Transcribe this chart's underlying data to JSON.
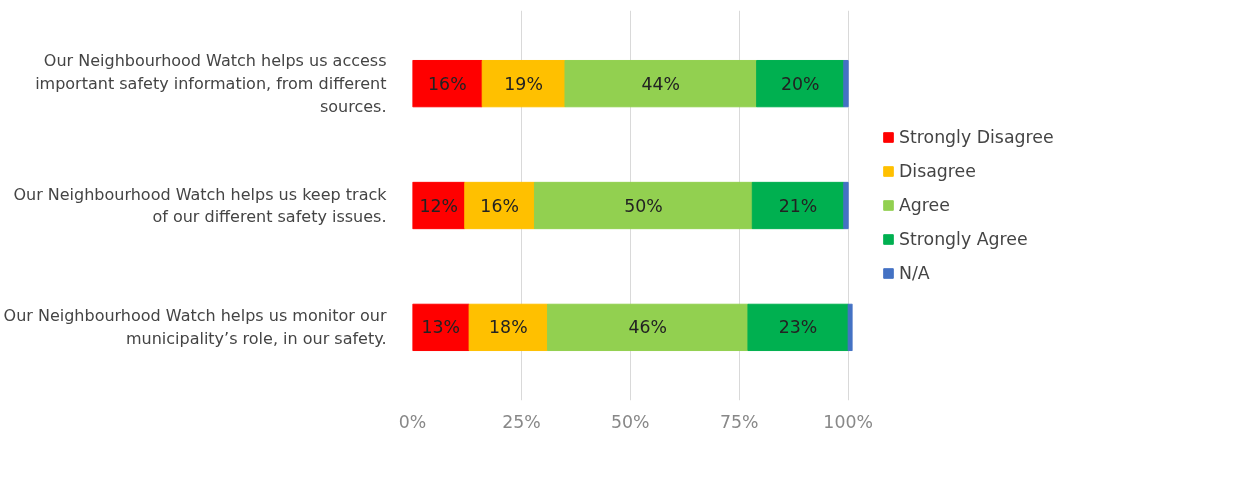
{
  "chart_data": {
    "type": "bar",
    "orientation": "horizontal",
    "stacked": true,
    "categories": [
      "Our Neighbourhood Watch helps us access important safety information, from different sources.",
      "Our Neighbourhood Watch helps us keep track of our different safety issues.",
      "Our Neighbourhood Watch helps us monitor our municipality’s role, in our safety."
    ],
    "series": [
      {
        "name": "Strongly Disagree",
        "color": "#ff0000",
        "values": [
          16,
          12,
          13
        ],
        "value_labels": [
          "16%",
          "12%",
          "13%"
        ]
      },
      {
        "name": "Disagree",
        "color": "#ffc000",
        "values": [
          19,
          16,
          18
        ],
        "value_labels": [
          "19%",
          "16%",
          "18%"
        ]
      },
      {
        "name": "Agree",
        "color": "#92d050",
        "values": [
          44,
          50,
          46
        ],
        "value_labels": [
          "44%",
          "50%",
          "46%"
        ]
      },
      {
        "name": "Strongly Agree",
        "color": "#00b050",
        "values": [
          20,
          21,
          23
        ],
        "value_labels": [
          "20%",
          "21%",
          "23%"
        ]
      },
      {
        "name": "N/A",
        "color": "#4472c4",
        "values": [
          1,
          1,
          1
        ],
        "value_labels": [
          null,
          null,
          null
        ]
      }
    ],
    "xlim": [
      0,
      101
    ],
    "xticks": [
      {
        "value": 0,
        "label": "0%"
      },
      {
        "value": 25,
        "label": "25%"
      },
      {
        "value": 50,
        "label": "50%"
      },
      {
        "value": 75,
        "label": "75%"
      },
      {
        "value": 100,
        "label": "100%"
      }
    ],
    "grid": "x",
    "legend": "right"
  }
}
